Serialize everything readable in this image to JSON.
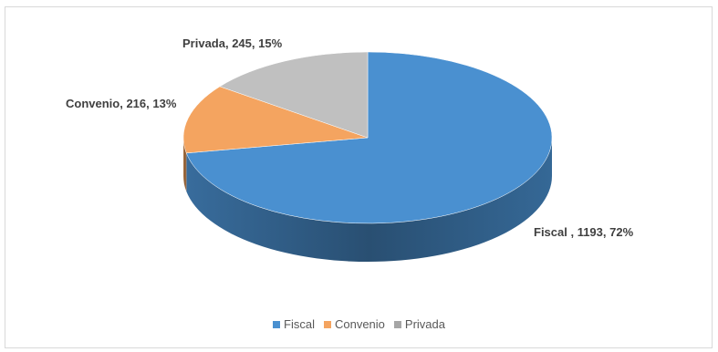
{
  "chart_data": {
    "type": "pie",
    "title": "",
    "three_d": true,
    "legend_position": "bottom",
    "slices": [
      {
        "name": "Fiscal",
        "label": "Fiscal , 1193, 72%",
        "value": 1193,
        "percent": 72,
        "color": "#4a90d0"
      },
      {
        "name": "Convenio",
        "label": "Convenio, 216, 13%",
        "value": 216,
        "percent": 13,
        "color": "#f4a460"
      },
      {
        "name": "Privada",
        "label": "Privada, 245, 15%",
        "value": 245,
        "percent": 15,
        "color": "#c0c0c0"
      }
    ],
    "legend": [
      "Fiscal",
      "Convenio",
      "Privada"
    ]
  }
}
